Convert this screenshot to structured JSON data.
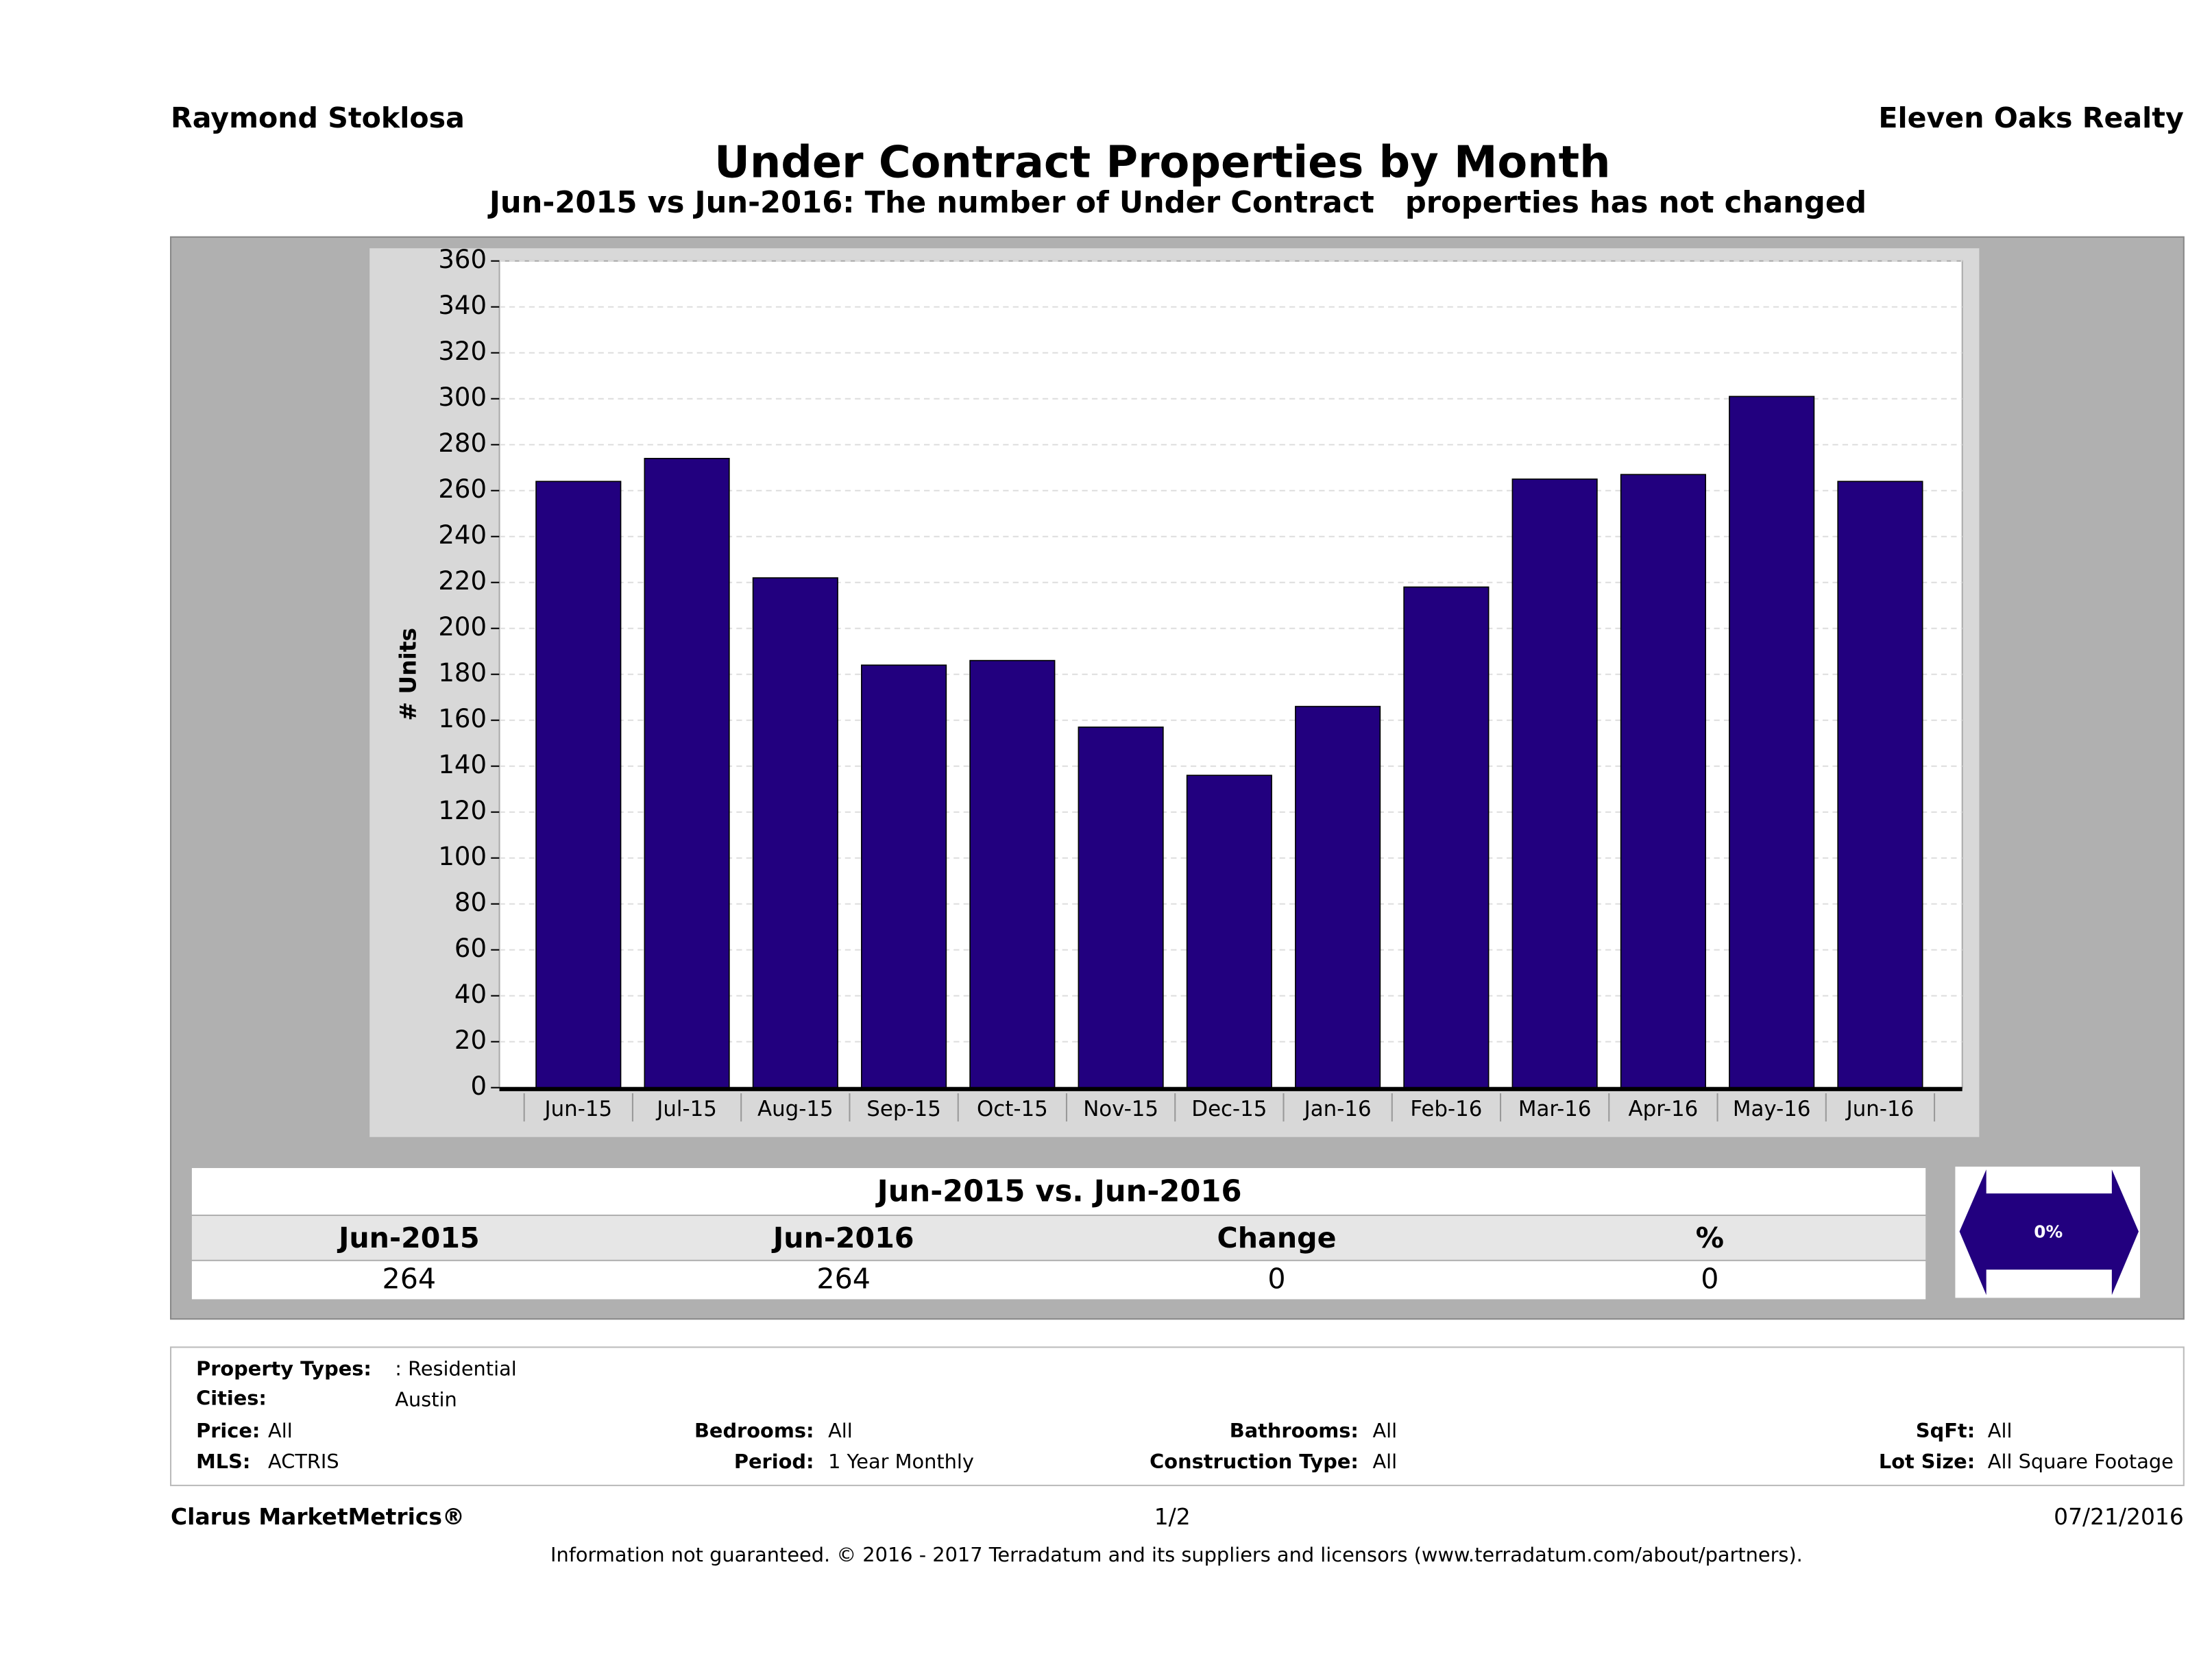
{
  "header": {
    "agent": "Raymond Stoklosa",
    "company": "Eleven Oaks Realty"
  },
  "chart_data": {
    "type": "bar",
    "title": "Under Contract Properties by Month",
    "subtitle": "Jun-2015 vs Jun-2016: The number of Under Contract   properties has not changed",
    "y_label": "# Units",
    "categories": [
      "Jun-15",
      "Jul-15",
      "Aug-15",
      "Sep-15",
      "Oct-15",
      "Nov-15",
      "Dec-15",
      "Jan-16",
      "Feb-16",
      "Mar-16",
      "Apr-16",
      "May-16",
      "Jun-16"
    ],
    "values": [
      264,
      274,
      222,
      184,
      186,
      157,
      136,
      166,
      218,
      265,
      267,
      301,
      264
    ],
    "color": "#22007f",
    "ylim": [
      0,
      360
    ],
    "yticks": [
      0,
      20,
      40,
      60,
      80,
      100,
      120,
      140,
      160,
      180,
      200,
      220,
      240,
      260,
      280,
      300,
      320,
      340,
      360
    ],
    "grid": true
  },
  "summary": {
    "title": "Jun-2015 vs. Jun-2016",
    "headers": [
      "Jun-2015",
      "Jun-2016",
      "Change",
      "%"
    ],
    "values": [
      264,
      264,
      0,
      0
    ],
    "badge": "0%"
  },
  "filters": [
    {
      "label": "Property Types:",
      "value": ": Residential"
    },
    {
      "label": "Cities:",
      "value": "Austin"
    },
    {
      "label": "Price:",
      "value": "All"
    },
    {
      "label": "MLS:",
      "value": "ACTRIS"
    },
    {
      "label": "Bedrooms:",
      "value": "All"
    },
    {
      "label": "Period:",
      "value": "1 Year Monthly"
    },
    {
      "label": "Bathrooms:",
      "value": "All"
    },
    {
      "label": "Construction Type:",
      "value": "All"
    },
    {
      "label": "SqFt:",
      "value": "All"
    },
    {
      "label": "Lot Size:",
      "value": "All Square Footage"
    }
  ],
  "footer": {
    "brand": "Clarus MarketMetrics®",
    "page": "1/2",
    "date": "07/21/2016",
    "disclaimer": "Information not guaranteed. © 2016 - 2017 Terradatum and its suppliers and licensors (www.terradatum.com/about/partners)."
  }
}
